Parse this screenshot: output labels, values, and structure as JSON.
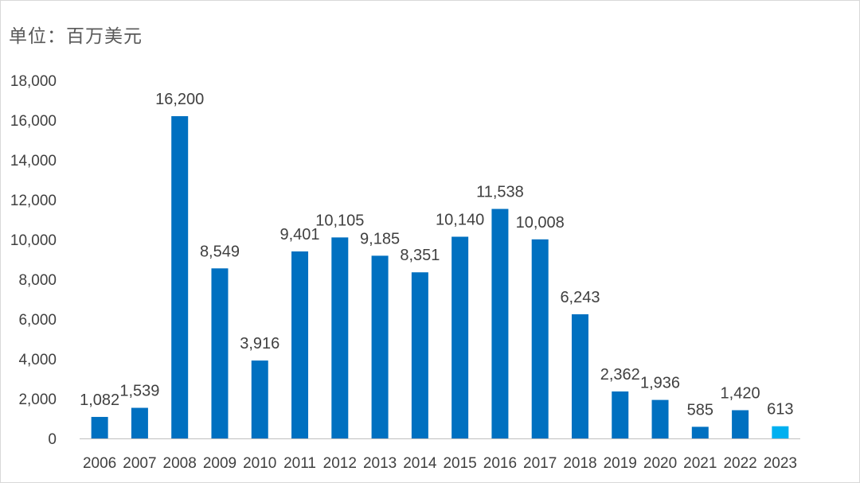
{
  "unit_label": "单位：百万美元",
  "chart_data": {
    "type": "bar",
    "title": "",
    "xlabel": "",
    "ylabel": "",
    "categories": [
      "2006",
      "2007",
      "2008",
      "2009",
      "2010",
      "2011",
      "2012",
      "2013",
      "2014",
      "2015",
      "2016",
      "2017",
      "2018",
      "2019",
      "2020",
      "2021",
      "2022",
      "2023"
    ],
    "values": [
      1082,
      1539,
      16200,
      8549,
      3916,
      9401,
      10105,
      9185,
      8351,
      10140,
      11538,
      10008,
      6243,
      2362,
      1936,
      585,
      1420,
      613
    ],
    "data_labels": [
      "1,082",
      "1,539",
      "16,200",
      "8,549",
      "3,916",
      "9,401",
      "10,105",
      "9,185",
      "8,351",
      "10,140",
      "11,538",
      "10,008",
      "6,243",
      "2,362",
      "1,936",
      "585",
      "1,420",
      "613"
    ],
    "y_ticks": [
      0,
      2000,
      4000,
      6000,
      8000,
      10000,
      12000,
      14000,
      16000,
      18000
    ],
    "y_tick_labels": [
      "0",
      "2,000",
      "4,000",
      "6,000",
      "8,000",
      "10,000",
      "12,000",
      "14,000",
      "16,000",
      "18,000"
    ],
    "ylim": [
      0,
      18000
    ],
    "grid": false,
    "legend": "none",
    "colors": {
      "bar": "#0070c0",
      "highlight_bar": "#00b0f0",
      "axis": "#bfbfbf",
      "text": "#404040"
    },
    "highlight_category": "2023"
  }
}
